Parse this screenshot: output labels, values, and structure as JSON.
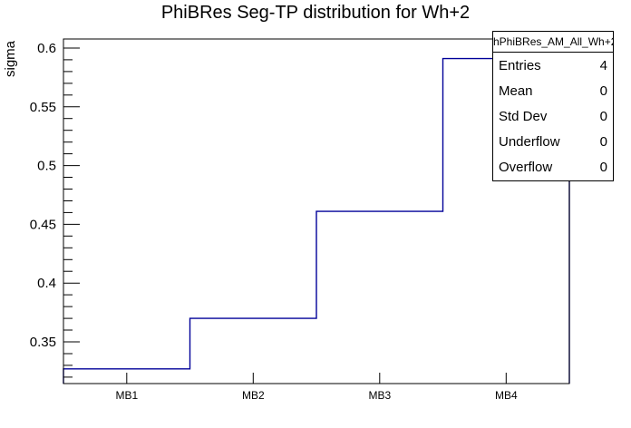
{
  "title": "PhiBRes Seg-TP distribution for Wh+2",
  "y_axis": {
    "label": "sigma"
  },
  "x_axis": {
    "categories": [
      "MB1",
      "MB2",
      "MB3",
      "MB4"
    ]
  },
  "stats_box": {
    "title": "hPhiBRes_AM_All_Wh+2",
    "rows": [
      {
        "label": "Entries",
        "value": "4"
      },
      {
        "label": "Mean",
        "value": "0"
      },
      {
        "label": "Std Dev",
        "value": "0"
      },
      {
        "label": "Underflow",
        "value": "0"
      },
      {
        "label": "Overflow",
        "value": "0"
      }
    ]
  },
  "colors": {
    "hist_line": "#000099",
    "frame": "#000000",
    "text": "#000000",
    "background": "#ffffff"
  },
  "chart_data": {
    "type": "line",
    "style": "step-histogram",
    "title": "PhiBRes Seg-TP distribution for Wh+2",
    "xlabel": "",
    "ylabel": "sigma",
    "categories": [
      "MB1",
      "MB2",
      "MB3",
      "MB4"
    ],
    "values": [
      0.327,
      0.37,
      0.461,
      0.591
    ],
    "ylim": [
      0.3145,
      0.6077
    ],
    "y_major_ticks": {
      "values": [
        0.35,
        0.4,
        0.45,
        0.5,
        0.55,
        0.6
      ],
      "labels": [
        "0.35",
        "0.4",
        "0.45",
        "0.5",
        "0.55",
        "0.6"
      ]
    },
    "y_minor_tick_step": 0.01,
    "grid": false,
    "legend": false,
    "line_color": "#000099"
  }
}
